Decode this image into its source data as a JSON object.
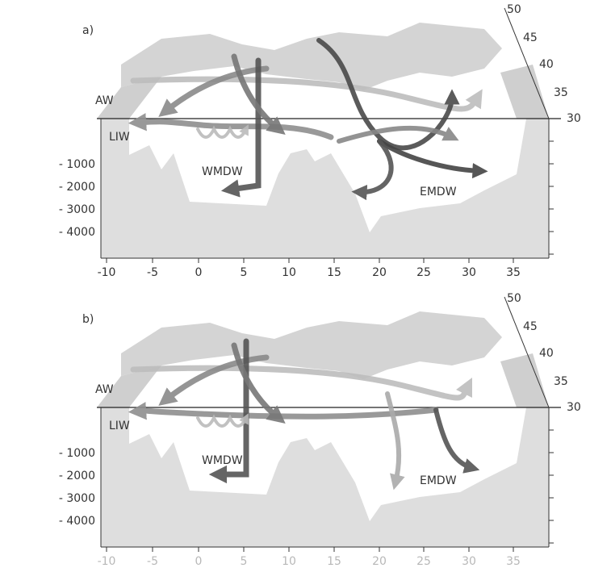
{
  "panels": [
    {
      "label": "a)",
      "water_masses": [
        "AW",
        "LIW",
        "WMDW",
        "EMDW"
      ],
      "depth_labels": [
        "- 1000",
        "- 2000",
        "- 3000",
        "- 4000"
      ],
      "lon_labels": [
        "-10",
        "-5",
        "0",
        "5",
        "10",
        "15",
        "20",
        "25",
        "30",
        "35"
      ],
      "lat_labels": [
        "50",
        "45",
        "40",
        "35",
        "30"
      ]
    },
    {
      "label": "b)",
      "water_masses": [
        "AW",
        "LIW",
        "WMDW",
        "EMDW"
      ],
      "depth_labels": [
        "- 1000",
        "- 2000",
        "- 3000",
        "- 4000"
      ],
      "lon_labels": [
        "-10",
        "-5",
        "0",
        "5",
        "10",
        "15",
        "20",
        "25",
        "30",
        "35"
      ],
      "lat_labels": [
        "50",
        "45",
        "40",
        "35",
        "30"
      ]
    }
  ]
}
